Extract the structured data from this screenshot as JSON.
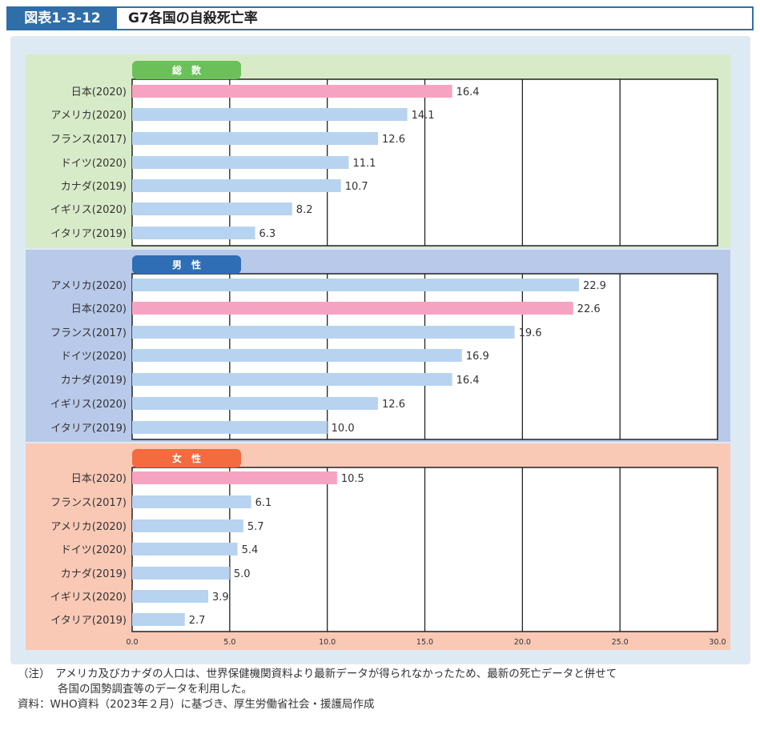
{
  "figure": {
    "number": "図表1-3-12",
    "title": "G7各国の自殺死亡率"
  },
  "colors": {
    "highlight_bar": "#f6a3c2",
    "normal_bar": "#b7d3f0",
    "panel_total_bg": "#d8ebc9",
    "panel_male_bg": "#b9c9e9",
    "panel_female_bg": "#f9c9b6",
    "tab_total": "#6cc05a",
    "tab_male": "#2f6db4",
    "tab_female": "#f36b3e"
  },
  "chart_data": {
    "type": "bar",
    "orientation": "horizontal",
    "xlim": [
      0,
      30
    ],
    "xticks": [
      "0.0",
      "5.0",
      "10.0",
      "15.0",
      "20.0",
      "25.0",
      "30.0"
    ],
    "grid": true,
    "panels": [
      {
        "label": "総　数",
        "categories": [
          "日本(2020)",
          "アメリカ(2020)",
          "フランス(2017)",
          "ドイツ(2020)",
          "カナダ(2019)",
          "イギリス(2020)",
          "イタリア(2019)"
        ],
        "values": [
          16.4,
          14.1,
          12.6,
          11.1,
          10.7,
          8.2,
          6.3
        ],
        "value_labels": [
          "16.4",
          "14.1",
          "12.6",
          "11.1",
          "10.7",
          "8.2",
          "6.3"
        ]
      },
      {
        "label": "男　性",
        "categories": [
          "アメリカ(2020)",
          "日本(2020)",
          "フランス(2017)",
          "ドイツ(2020)",
          "カナダ(2019)",
          "イギリス(2020)",
          "イタリア(2019)"
        ],
        "values": [
          22.9,
          22.6,
          19.6,
          16.9,
          16.4,
          12.6,
          10.0
        ],
        "value_labels": [
          "22.9",
          "22.6",
          "19.6",
          "16.9",
          "16.4",
          "12.6",
          "10.0"
        ]
      },
      {
        "label": "女　性",
        "categories": [
          "日本(2020)",
          "フランス(2017)",
          "アメリカ(2020)",
          "ドイツ(2020)",
          "カナダ(2019)",
          "イギリス(2020)",
          "イタリア(2019)"
        ],
        "values": [
          10.5,
          6.1,
          5.7,
          5.4,
          5.0,
          3.9,
          2.7
        ],
        "value_labels": [
          "10.5",
          "6.1",
          "5.7",
          "5.4",
          "5.0",
          "3.9",
          "2.7"
        ]
      }
    ]
  },
  "notes": {
    "note_line1": "（注）　アメリカ及びカナダの人口は、世界保健機関資料より最新データが得られなかったため、最新の死亡データと併せて",
    "note_line2": "各国の国勢調査等のデータを利用した。",
    "source": "資料：WHO資料（2023年２月）に基づき、厚生労働省社会・援護局作成"
  }
}
